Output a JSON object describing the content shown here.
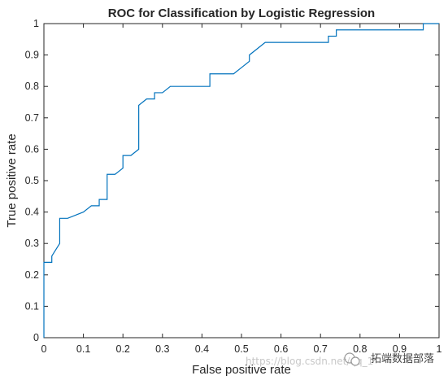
{
  "chart_data": {
    "type": "line",
    "title": "ROC for Classification by Logistic Regression",
    "xlabel": "False positive rate",
    "ylabel": "True positive rate",
    "xlim": [
      0,
      1
    ],
    "ylim": [
      0,
      1
    ],
    "xticks": [
      "0",
      "0.1",
      "0.2",
      "0.3",
      "0.4",
      "0.5",
      "0.6",
      "0.7",
      "0.8",
      "0.9",
      "1"
    ],
    "yticks": [
      "0",
      "0.1",
      "0.2",
      "0.3",
      "0.4",
      "0.5",
      "0.6",
      "0.7",
      "0.8",
      "0.9",
      "1"
    ],
    "grid": false,
    "color": "#0072BD",
    "series": [
      {
        "x": [
          0,
          0,
          0.02,
          0.02,
          0.03,
          0.04,
          0.04,
          0.06,
          0.08,
          0.1,
          0.12,
          0.14,
          0.14,
          0.16,
          0.16,
          0.18,
          0.19,
          0.2,
          0.2,
          0.22,
          0.23,
          0.24,
          0.24,
          0.25,
          0.26,
          0.28,
          0.28,
          0.3,
          0.32,
          0.42,
          0.42,
          0.48,
          0.5,
          0.52,
          0.52,
          0.54,
          0.56,
          0.72,
          0.72,
          0.74,
          0.74,
          0.96,
          0.96,
          1
        ],
        "y": [
          0,
          0.24,
          0.24,
          0.26,
          0.28,
          0.3,
          0.38,
          0.38,
          0.39,
          0.4,
          0.42,
          0.42,
          0.44,
          0.44,
          0.52,
          0.52,
          0.53,
          0.54,
          0.58,
          0.58,
          0.59,
          0.6,
          0.74,
          0.75,
          0.76,
          0.76,
          0.78,
          0.78,
          0.8,
          0.8,
          0.84,
          0.84,
          0.86,
          0.88,
          0.9,
          0.92,
          0.94,
          0.94,
          0.96,
          0.96,
          0.98,
          0.98,
          1,
          1
        ]
      }
    ]
  },
  "watermark": {
    "url": "https://blog.csdn.net/qq_1",
    "brand": "拓端数据部落"
  }
}
